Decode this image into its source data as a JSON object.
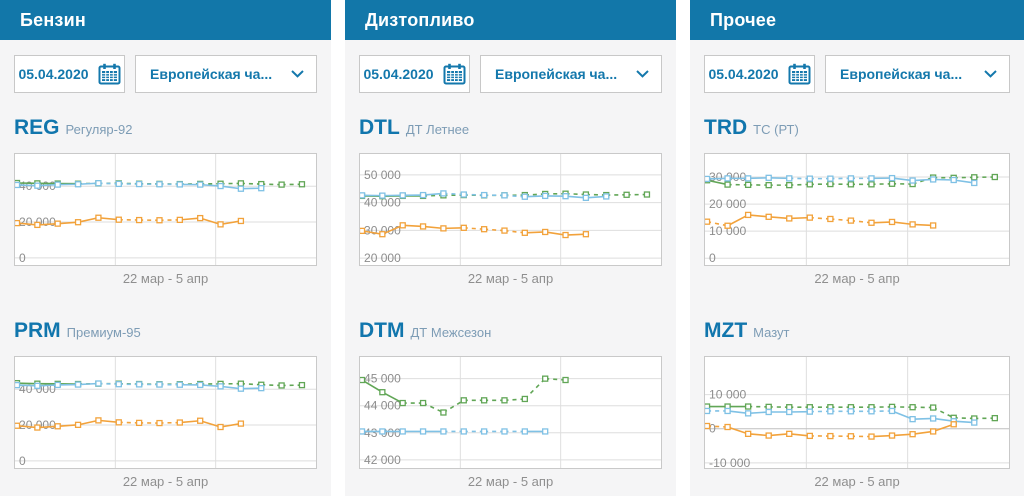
{
  "colors": {
    "header_bg": "#1277a9",
    "header_text": "#ffffff",
    "accent_blue": "#1478ac",
    "code_blue": "#1176ad",
    "subtitle_blue_gray": "#7d9cb5",
    "column_bg": "#f5f5f6",
    "panel_border": "#c9c9c9",
    "grid": "#dedede",
    "grid_strong": "#bfbfbf",
    "tick_label": "#8d8d8d",
    "caption": "#8f8f8f",
    "green": "#61a656",
    "blue": "#7fc1e5",
    "orange": "#f2a23b"
  },
  "columns": [
    {
      "title": "Бензин",
      "date": "05.04.2020",
      "region": "Европейская ча...",
      "panels": [
        {
          "code": "REG",
          "name": "Регуляр-92",
          "range": "22 мар - 5 апр"
        },
        {
          "code": "PRM",
          "name": "Премиум-95",
          "range": "22 мар - 5 апр"
        }
      ]
    },
    {
      "title": "Дизтопливо",
      "date": "05.04.2020",
      "region": "Европейская ча...",
      "panels": [
        {
          "code": "DTL",
          "name": "ДТ Летнее",
          "range": "22 мар - 5 апр"
        },
        {
          "code": "DTM",
          "name": "ДТ Межсезон",
          "range": "22 мар - 5 апр"
        }
      ]
    },
    {
      "title": "Прочее",
      "date": "05.04.2020",
      "region": "Европейская ча...",
      "panels": [
        {
          "code": "TRD",
          "name": "ТС (РТ)",
          "range": "22 мар - 5 апр"
        },
        {
          "code": "MZT",
          "name": "Мазут",
          "range": "22 мар - 5 апр"
        }
      ]
    }
  ],
  "chart_data": [
    {
      "id": "reg",
      "type": "line",
      "title": "REG Регуляр-92",
      "x_caption": "22 мар - 5 апр",
      "n_slots": 15,
      "ylim": [
        -4000,
        58000
      ],
      "yticks": [
        {
          "value": 40000,
          "label": "40 000"
        },
        {
          "value": 20000,
          "label": "20 000"
        },
        {
          "value": 0,
          "label": "0"
        }
      ],
      "series": [
        {
          "name": "green",
          "color": "green",
          "dashed": [
            [
              3,
              14
            ]
          ],
          "values": [
            41800,
            41600,
            41500,
            41400,
            41600,
            41600,
            41400,
            41300,
            41200,
            41300,
            41400,
            41600,
            41200,
            40900,
            41100
          ]
        },
        {
          "name": "blue",
          "color": "blue",
          "dashed": [
            [
              4,
              8
            ]
          ],
          "values": [
            40700,
            40300,
            40900,
            41100,
            41700,
            41300,
            41200,
            41100,
            41000,
            40900,
            40100,
            38600,
            38900,
            null,
            null
          ]
        },
        {
          "name": "orange",
          "color": "orange",
          "dashed": [
            [
              5,
              8
            ]
          ],
          "values": [
            19400,
            18400,
            19100,
            19900,
            22400,
            21300,
            21100,
            21000,
            21200,
            22200,
            18700,
            20600,
            null,
            null,
            null
          ]
        }
      ]
    },
    {
      "id": "prm",
      "type": "line",
      "title": "PRM Премиум-95",
      "x_caption": "22 мар - 5 апр",
      "n_slots": 15,
      "ylim": [
        -4000,
        58000
      ],
      "yticks": [
        {
          "value": 40000,
          "label": "40 000"
        },
        {
          "value": 20000,
          "label": "20 000"
        },
        {
          "value": 0,
          "label": "0"
        }
      ],
      "series": [
        {
          "name": "green",
          "color": "green",
          "dashed": [
            [
              3,
              14
            ]
          ],
          "values": [
            43400,
            43100,
            43000,
            42900,
            43100,
            43100,
            42900,
            42800,
            42800,
            42900,
            43000,
            43100,
            42500,
            42100,
            42300
          ]
        },
        {
          "name": "blue",
          "color": "blue",
          "dashed": [
            [
              4,
              8
            ]
          ],
          "values": [
            42300,
            41900,
            42400,
            42600,
            43200,
            42800,
            42700,
            42600,
            42500,
            42400,
            41600,
            40300,
            40600,
            null,
            null
          ]
        },
        {
          "name": "orange",
          "color": "orange",
          "dashed": [
            [
              5,
              8
            ]
          ],
          "values": [
            19600,
            18600,
            19300,
            20100,
            22600,
            21500,
            21200,
            21100,
            21400,
            22400,
            18900,
            20800,
            null,
            null,
            null
          ]
        }
      ]
    },
    {
      "id": "dtl",
      "type": "line",
      "title": "DTL ДТ Летнее",
      "x_caption": "22 мар - 5 апр",
      "n_slots": 15,
      "ylim": [
        17500,
        57500
      ],
      "yticks": [
        {
          "value": 50000,
          "label": "50 000"
        },
        {
          "value": 40000,
          "label": "40 000"
        },
        {
          "value": 30000,
          "label": "30 000"
        },
        {
          "value": 20000,
          "label": "20 000"
        }
      ],
      "series": [
        {
          "name": "green",
          "color": "green",
          "dashed": [
            [
              3,
              14
            ]
          ],
          "values": [
            42400,
            42300,
            42400,
            42400,
            42600,
            42700,
            42600,
            42600,
            42700,
            43100,
            43200,
            42900,
            42700,
            42800,
            42900
          ]
        },
        {
          "name": "blue",
          "color": "blue",
          "dashed": [
            [
              4,
              8
            ]
          ],
          "values": [
            42600,
            42500,
            42600,
            42700,
            43300,
            42900,
            42700,
            42600,
            42100,
            42400,
            42300,
            41700,
            42200,
            null,
            null
          ]
        },
        {
          "name": "orange",
          "color": "orange",
          "dashed": [
            [
              5,
              8
            ]
          ],
          "values": [
            29800,
            28600,
            31800,
            31400,
            30700,
            30900,
            30400,
            29900,
            29100,
            29400,
            28300,
            28600,
            null,
            null,
            null
          ]
        }
      ]
    },
    {
      "id": "dtm",
      "type": "line",
      "title": "DTM ДТ Межсезон",
      "x_caption": "22 мар - 5 апр",
      "n_slots": 15,
      "ylim": [
        41700,
        45800
      ],
      "yticks": [
        {
          "value": 45000,
          "label": "45 000"
        },
        {
          "value": 44000,
          "label": "44 000"
        },
        {
          "value": 43000,
          "label": "43 000"
        },
        {
          "value": 42000,
          "label": "42 000"
        }
      ],
      "series": [
        {
          "name": "green",
          "color": "green",
          "dashed": [
            [
              2,
              10
            ]
          ],
          "values": [
            44950,
            44500,
            44100,
            44100,
            43750,
            44200,
            44200,
            44200,
            44250,
            45000,
            44950,
            null,
            null,
            null,
            null
          ]
        },
        {
          "name": "blue",
          "color": "blue",
          "dashed": [
            [
              4,
              8
            ]
          ],
          "values": [
            43050,
            43050,
            43050,
            43050,
            43050,
            43050,
            43050,
            43050,
            43050,
            43050,
            null,
            null,
            null,
            null,
            null
          ]
        }
      ]
    },
    {
      "id": "trd",
      "type": "line",
      "title": "TRD ТС (РТ)",
      "x_caption": "22 мар - 5 апр",
      "n_slots": 15,
      "ylim": [
        -2500,
        38500
      ],
      "yticks": [
        {
          "value": 30000,
          "label": "30 000"
        },
        {
          "value": 20000,
          "label": "20 000"
        },
        {
          "value": 10000,
          "label": "10 000"
        },
        {
          "value": 0,
          "label": "0"
        }
      ],
      "series": [
        {
          "name": "green",
          "color": "green",
          "dashed": [
            [
              1,
              14
            ]
          ],
          "values": [
            28800,
            27200,
            27100,
            27000,
            27000,
            27300,
            27400,
            27300,
            27300,
            27500,
            27400,
            29800,
            29700,
            29900,
            30000
          ]
        },
        {
          "name": "blue",
          "color": "blue",
          "dashed": [
            [
              4,
              8
            ]
          ],
          "values": [
            29300,
            29500,
            29500,
            29700,
            29500,
            29400,
            29400,
            29500,
            29500,
            29600,
            28700,
            29100,
            28900,
            27800,
            null
          ]
        },
        {
          "name": "orange",
          "color": "orange",
          "dashed": [
            [
              0,
              1
            ],
            [
              5,
              8
            ]
          ],
          "values": [
            13500,
            12000,
            16000,
            15300,
            14700,
            15000,
            14500,
            13900,
            13100,
            13400,
            12500,
            12100,
            null,
            null,
            null
          ]
        }
      ]
    },
    {
      "id": "mzt",
      "type": "line",
      "title": "MZT Мазут",
      "x_caption": "22 мар - 5 апр",
      "n_slots": 15,
      "ylim": [
        -11500,
        21000
      ],
      "yticks": [
        {
          "value": 10000,
          "label": "10 000"
        },
        {
          "value": 0,
          "label": "0",
          "strong": true
        },
        {
          "value": -10000,
          "label": "-10 000"
        }
      ],
      "series": [
        {
          "name": "green",
          "color": "green",
          "dashed": [
            [
              2,
              14
            ]
          ],
          "values": [
            6500,
            6500,
            6500,
            6400,
            6300,
            6300,
            6300,
            6300,
            6300,
            6400,
            6300,
            6200,
            3200,
            3000,
            3100
          ]
        },
        {
          "name": "blue",
          "color": "blue",
          "dashed": [
            [
              0,
              1
            ],
            [
              5,
              9
            ]
          ],
          "values": [
            5200,
            5200,
            4500,
            4900,
            4900,
            5000,
            5100,
            5100,
            5100,
            5200,
            2800,
            3000,
            2200,
            1800,
            null
          ]
        },
        {
          "name": "orange",
          "color": "orange",
          "dashed": [
            [
              0,
              1
            ],
            [
              5,
              8
            ]
          ],
          "values": [
            800,
            500,
            -1500,
            -2000,
            -1500,
            -2100,
            -2150,
            -2200,
            -2300,
            -2000,
            -1600,
            -800,
            1300,
            null,
            null
          ]
        }
      ]
    }
  ]
}
